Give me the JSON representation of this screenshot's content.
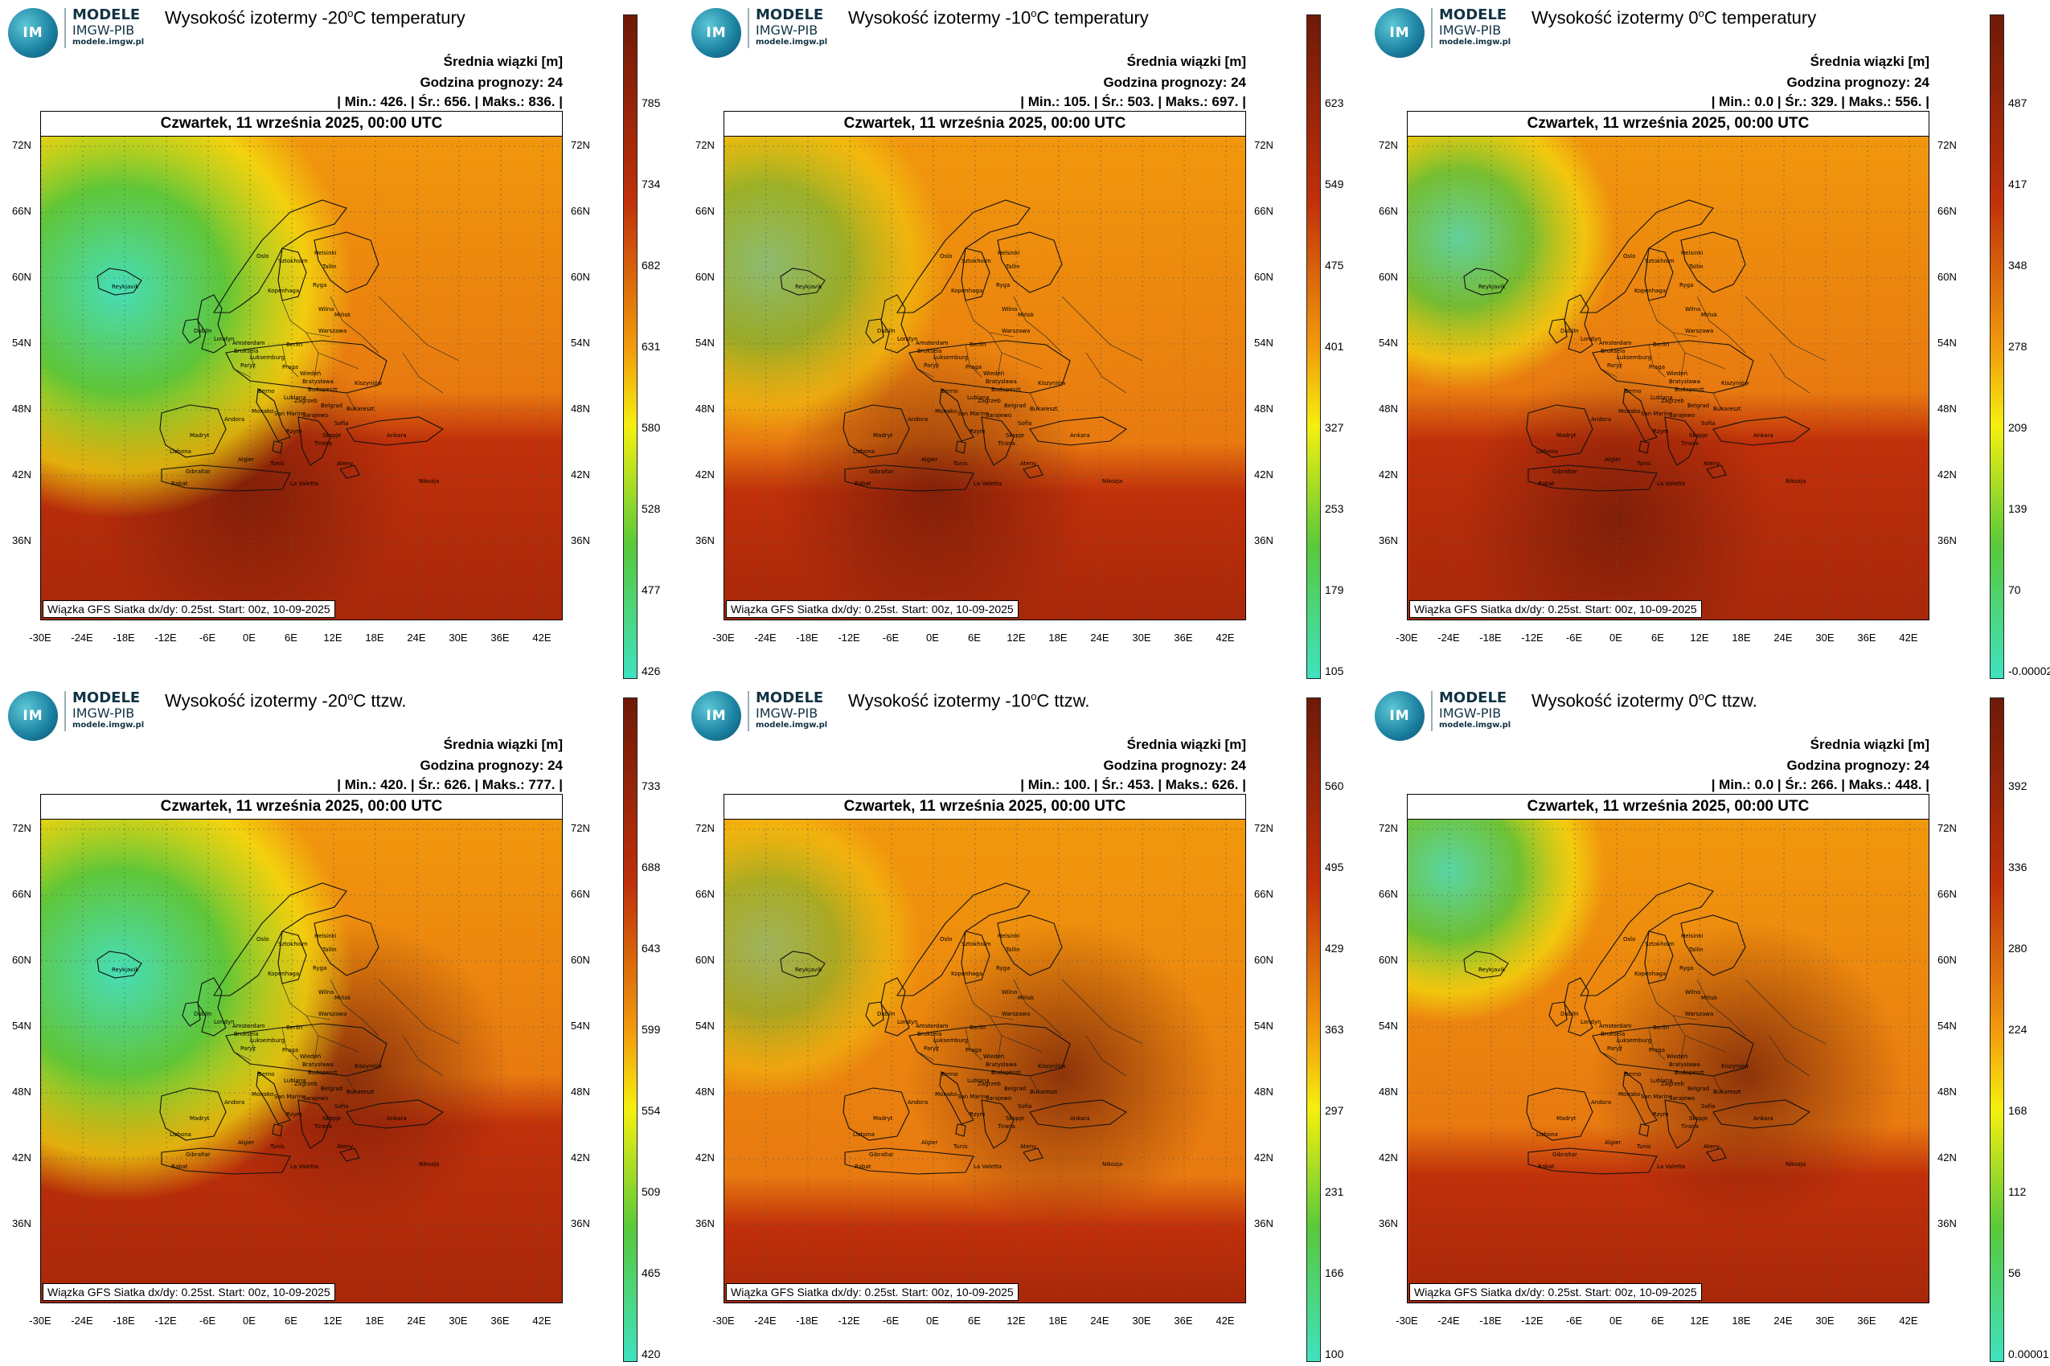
{
  "brand": {
    "logo": "IM GW",
    "line1": "MODELE",
    "line2": "IMGW-PIB",
    "line3": "modele.imgw.pl"
  },
  "common": {
    "mean_label": "Średnia wiązki [m]",
    "hour_label": "Godzina prognozy: 24",
    "date": "Czwartek, 11 września 2025, 00:00 UTC",
    "footer": "Wiązka GFS Siatka dx/dy: 0.25st. Start: 00z, 10-09-2025",
    "lat_labels": [
      "72N",
      "66N",
      "60N",
      "54N",
      "48N",
      "42N",
      "36N"
    ],
    "lon_labels": [
      "-30E",
      "-24E",
      "-18E",
      "-12E",
      "-6E",
      "0E",
      "6E",
      "12E",
      "18E",
      "24E",
      "30E",
      "36E",
      "42E"
    ],
    "cities": [
      "Reykjavik",
      "Oslo",
      "Sztokholm",
      "Helsinki",
      "Tallin",
      "Ryga",
      "Wilno",
      "Mińsk",
      "Kopenhaga",
      "Dublin",
      "Londyn",
      "Amsterdam",
      "Bruksela",
      "Luksemburg",
      "Paryż",
      "Berlin",
      "Praga",
      "Warszawa",
      "Wiedeń",
      "Bratysława",
      "Budapeszt",
      "Kiszyniów",
      "Berno",
      "Lublana",
      "Zagrzeb",
      "Belgrad",
      "Bukareszt",
      "Monako",
      "Andora",
      "Rzym",
      "San Marino",
      "Sarajewo",
      "Sofia",
      "Skopje",
      "Tirana",
      "Ateny",
      "Ankara",
      "Madryt",
      "Lizbona",
      "Gibraltar",
      "Rabat",
      "Algier",
      "Tunis",
      "La Valetta",
      "Nikozja"
    ]
  },
  "panels": [
    {
      "title_pre": "Wysokość izotermy -20",
      "title_post": "C temperatury",
      "stats": "| Min.:   426. | Śr.:   656. | Maks.:   836. |",
      "colorbar": [
        "785",
        "734",
        "682",
        "631",
        "580",
        "528",
        "477",
        "426"
      ]
    },
    {
      "title_pre": "Wysokość izotermy -10",
      "title_post": "C temperatury",
      "stats": "| Min.:   105. | Śr.:   503. | Maks.:   697. |",
      "colorbar": [
        "623",
        "549",
        "475",
        "401",
        "327",
        "253",
        "179",
        "105"
      ]
    },
    {
      "title_pre": "Wysokość izotermy 0",
      "title_post": "C temperatury",
      "stats": "| Min.:    0.0 | Śr.:   329. | Maks.:   556. |",
      "colorbar": [
        "487",
        "417",
        "348",
        "278",
        "209",
        "139",
        "70",
        "-0.00002"
      ]
    },
    {
      "title_pre": "Wysokość izotermy -20",
      "title_post": "C ttzw.",
      "stats": "| Min.:   420. | Śr.:   626. | Maks.:   777. |",
      "colorbar": [
        "733",
        "688",
        "643",
        "599",
        "554",
        "509",
        "465",
        "420"
      ]
    },
    {
      "title_pre": "Wysokość izotermy -10",
      "title_post": "C ttzw.",
      "stats": "| Min.:   100. | Śr.:   453. | Maks.:   626. |",
      "colorbar": [
        "560",
        "495",
        "429",
        "363",
        "297",
        "231",
        "166",
        "100"
      ]
    },
    {
      "title_pre": "Wysokość izotermy 0",
      "title_post": "C ttzw.",
      "stats": "| Min.:    0.0 | Śr.:   266. | Maks.:   448. |",
      "colorbar": [
        "392",
        "336",
        "280",
        "224",
        "168",
        "112",
        "56",
        "0.00001"
      ]
    }
  ],
  "colors": {
    "dark_red": "#6e1a08",
    "red": "#c0300a",
    "orange": "#f29a0c",
    "yellow": "#f5f00f",
    "green": "#58c93a",
    "teal": "#3fe2c0"
  }
}
